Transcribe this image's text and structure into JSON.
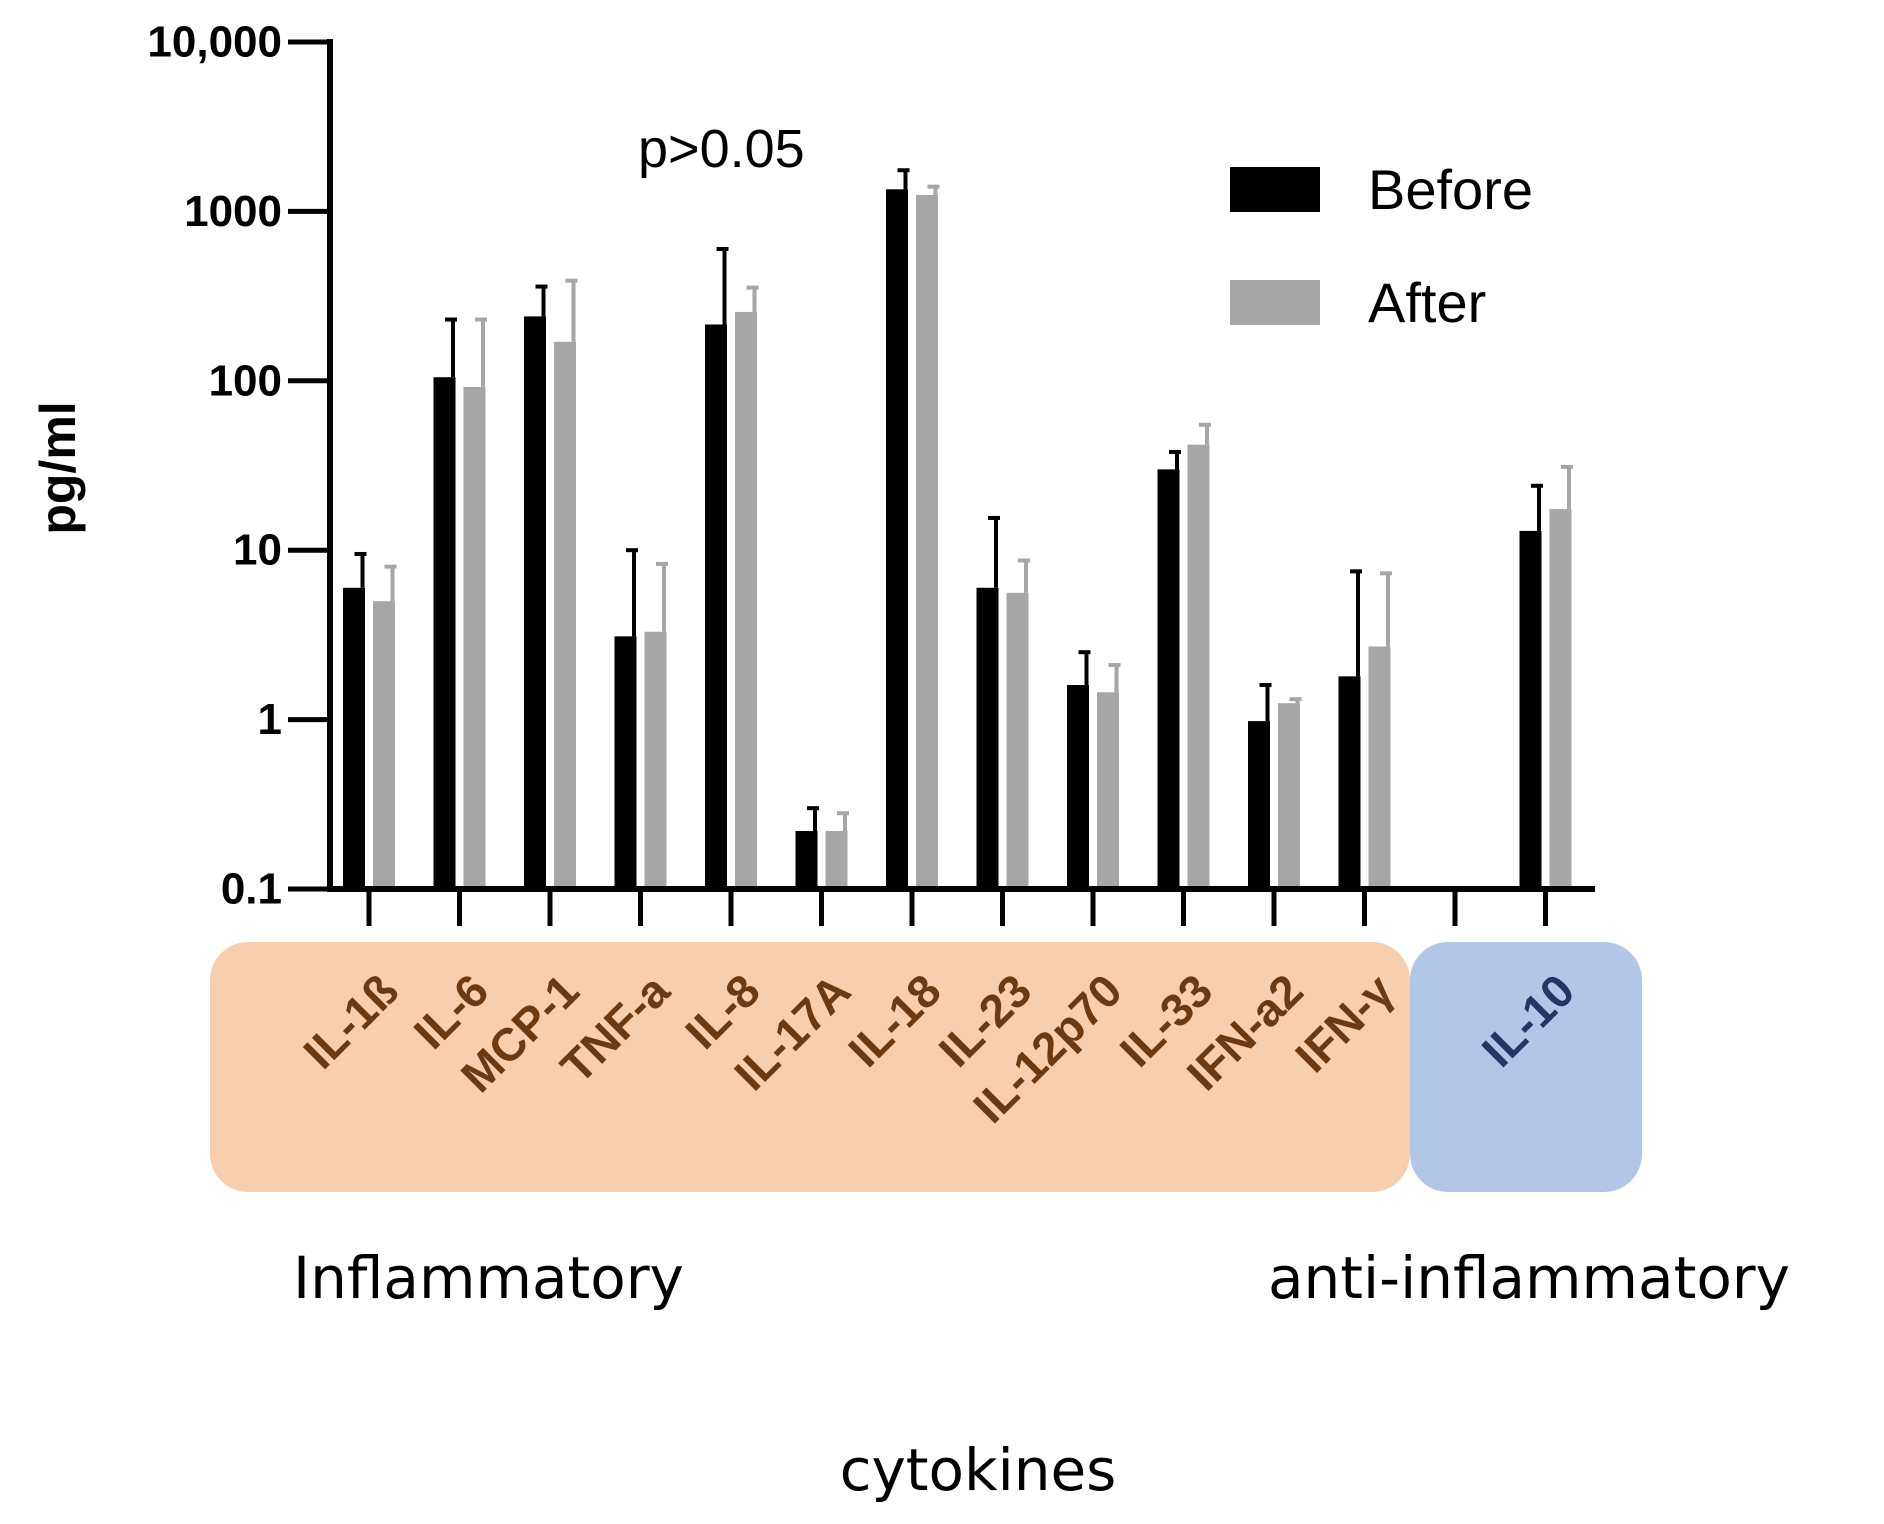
{
  "chart_data": {
    "type": "bar",
    "scale": "log",
    "title": "",
    "ylabel": "pg/ml",
    "xlabel": "cytokines",
    "ylim": [
      0.1,
      10000
    ],
    "yticks": [
      0.1,
      1,
      10,
      100,
      1000,
      10000
    ],
    "ytick_labels": [
      "0.1",
      "1",
      "10",
      "100",
      "1000",
      "10,000"
    ],
    "categories": [
      "IL-1ß",
      "IL-6",
      "MCP-1",
      "TNF-a",
      "IL-8",
      "IL-17A",
      "IL-18",
      "IL-23",
      "IL-12p70",
      "IL-33",
      "IFN-a2",
      "IFN-γ",
      "",
      "IL-10"
    ],
    "series": [
      {
        "name": "Before",
        "color": "#000000",
        "values": [
          6,
          105,
          240,
          3.1,
          215,
          0.22,
          1350,
          6,
          1.6,
          30,
          0.98,
          1.8,
          null,
          13
        ],
        "errors": [
          9.5,
          230,
          360,
          10,
          600,
          0.3,
          1750,
          15.5,
          2.5,
          38,
          1.6,
          7.5,
          null,
          24
        ]
      },
      {
        "name": "After",
        "color": "#a6a6a8",
        "values": [
          5,
          92,
          170,
          3.3,
          255,
          0.22,
          1250,
          5.6,
          1.45,
          42,
          1.25,
          2.7,
          null,
          17.5
        ],
        "errors": [
          8,
          230,
          390,
          8.3,
          355,
          0.28,
          1400,
          8.7,
          2.1,
          55,
          1.32,
          7.3,
          null,
          31
        ]
      }
    ],
    "legend": {
      "position": "top-right",
      "entries": [
        "Before",
        "After"
      ]
    },
    "annotations": [
      "p>0.05"
    ],
    "groups": [
      {
        "label": "Inflammatory",
        "color": "#f8cfae",
        "text_color": "#6b3a12",
        "members": [
          "IL-1ß",
          "IL-6",
          "MCP-1",
          "TNF-a",
          "IL-8",
          "IL-17A",
          "IL-18",
          "IL-23",
          "IL-12p70",
          "IL-33",
          "IFN-a2",
          "IFN-γ"
        ]
      },
      {
        "label": "anti-inflammatory",
        "color": "#b4c6e8",
        "text_color": "#1f3864",
        "members": [
          "IL-10"
        ]
      }
    ]
  }
}
